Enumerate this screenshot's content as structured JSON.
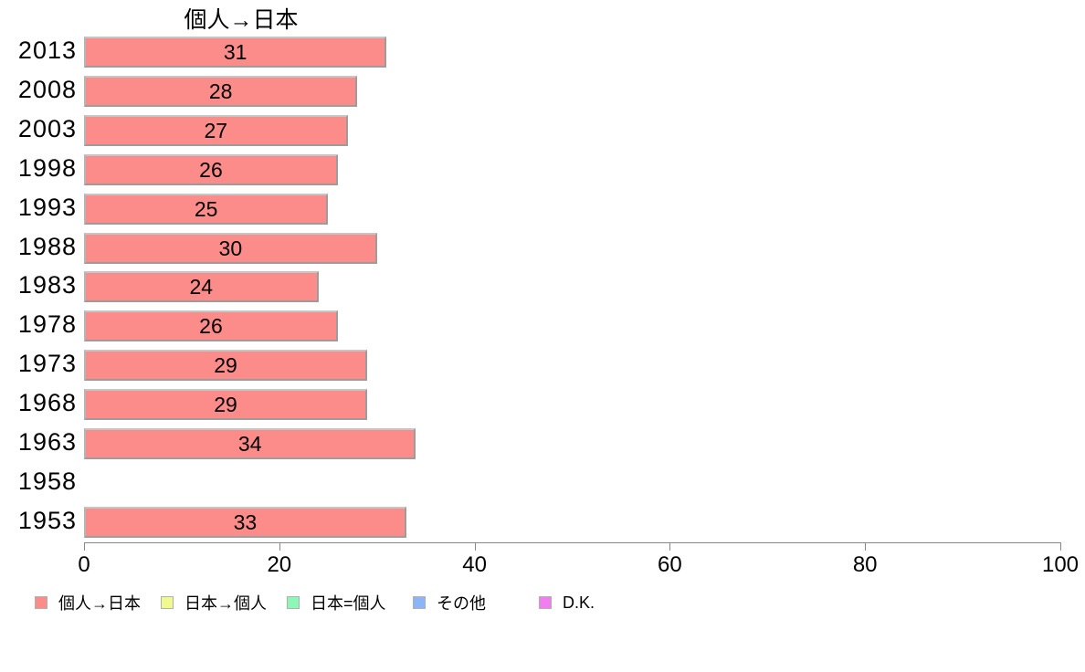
{
  "chart_data": {
    "type": "bar",
    "orientation": "horizontal",
    "title": "個人→日本",
    "categories": [
      "2013",
      "2008",
      "2003",
      "1998",
      "1993",
      "1988",
      "1983",
      "1978",
      "1973",
      "1968",
      "1963",
      "1958",
      "1953"
    ],
    "values": [
      31,
      28,
      27,
      26,
      25,
      30,
      24,
      26,
      29,
      29,
      34,
      null,
      33
    ],
    "value_labels": [
      "31",
      "28",
      "27",
      "26",
      "25",
      "30",
      "24",
      "26",
      "29",
      "29",
      "34",
      "",
      "33"
    ],
    "xlabel": "",
    "ylabel": "",
    "xlim": [
      0,
      100
    ],
    "x_ticks": [
      "0",
      "20",
      "40",
      "60",
      "80",
      "100"
    ],
    "grid": "off",
    "legend_position": "bottom-left",
    "colors": {
      "bar_fill": "#fc8c89",
      "bar_border": "#9c9c9c",
      "axis": "#888888",
      "text": "#000000",
      "background": "#ffffff"
    },
    "legend": [
      {
        "label": "個人→日本",
        "color": "#fc8c89"
      },
      {
        "label": "日本→個人",
        "color": "#eff98e"
      },
      {
        "label": "日本=個人",
        "color": "#8cf8b5"
      },
      {
        "label": "その他",
        "color": "#8cb5f8"
      },
      {
        "label": "D.K.",
        "color": "#f07ef0"
      }
    ]
  }
}
